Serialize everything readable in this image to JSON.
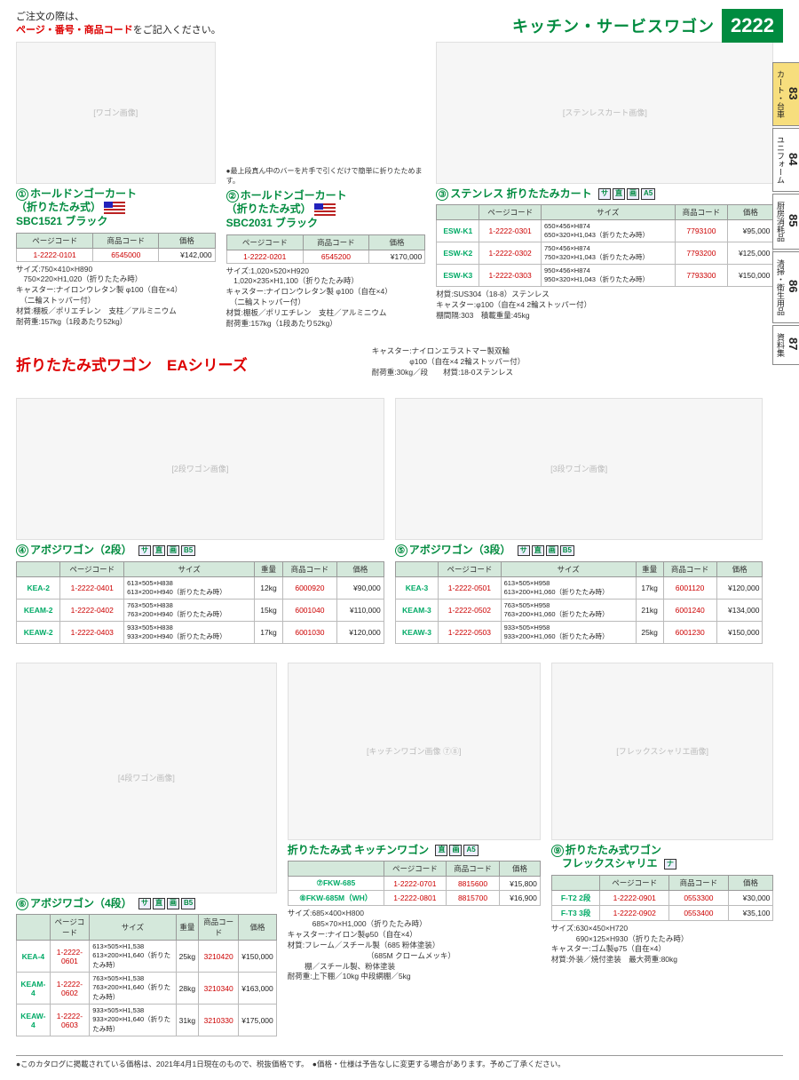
{
  "header": {
    "notice_pre": "ご注文の際は、",
    "notice_red": "ページ・番号・商品コード",
    "notice_post": "をご記入ください。",
    "title": "キッチン・サービスワゴン",
    "page_number": "2222"
  },
  "side_tabs": [
    {
      "num": "83",
      "label": "カート・台車",
      "active": true
    },
    {
      "num": "84",
      "label": "ユニフォーム",
      "active": false
    },
    {
      "num": "85",
      "label": "厨房消耗品",
      "active": false
    },
    {
      "num": "86",
      "label": "清掃・衛生用品",
      "active": false
    },
    {
      "num": "87",
      "label": "資料集",
      "active": false
    }
  ],
  "prod1": {
    "num": "①",
    "title1": "ホールドンゴーカート",
    "title2": "（折りたたみ式）",
    "title3": "SBC1521 ブラック",
    "flag_label": "アメリカ",
    "img_note": "●最上段真ん中のバーを片手で引くだけで簡単に折りたためます。",
    "table_headers": [
      "ページコード",
      "商品コード",
      "価格"
    ],
    "row": {
      "pagecode": "1-2222-0101",
      "itemcode": "6545000",
      "price": "¥142,000"
    },
    "spec": "サイズ:750×410×H890\n　750×220×H1,020（折りたたみ時）\nキャスター:ナイロンウレタン製 φ100（自在×4）\n　（二輪ストッパー付）\n材質:棚板／ポリエチレン　支柱／アルミニウム\n耐荷重:157kg（1段あたり52kg）"
  },
  "prod2": {
    "num": "②",
    "title1": "ホールドンゴーカート",
    "title2": "（折りたたみ式）",
    "title3": "SBC2031 ブラック",
    "flag_label": "アメリカ",
    "table_headers": [
      "ページコード",
      "商品コード",
      "価格"
    ],
    "row": {
      "pagecode": "1-2222-0201",
      "itemcode": "6545200",
      "price": "¥170,000"
    },
    "spec": "サイズ:1,020×520×H920\n　1,020×235×H1,100（折りたたみ時）\nキャスター:ナイロンウレタン製 φ100（自在×4）\n　（二輪ストッパー付）\n材質:棚板／ポリエチレン　支柱／アルミニウム\n耐荷重:157kg（1段あたり52kg）"
  },
  "prod3": {
    "num": "③",
    "title": "ステンレス 折りたたみカート",
    "badges": [
      "サ",
      "直",
      "画",
      "A5"
    ],
    "table_headers": [
      "",
      "ページコード",
      "サイズ",
      "商品コード",
      "価格"
    ],
    "rows": [
      {
        "model": "ESW-K1",
        "pagecode": "1-2222-0301",
        "size": "650×456×H874\n650×320×H1,043（折りたたみ時）",
        "itemcode": "7793100",
        "price": "¥95,000"
      },
      {
        "model": "ESW-K2",
        "pagecode": "1-2222-0302",
        "size": "750×456×H874\n750×320×H1,043（折りたたみ時）",
        "itemcode": "7793200",
        "price": "¥125,000"
      },
      {
        "model": "ESW-K3",
        "pagecode": "1-2222-0303",
        "size": "950×456×H874\n950×320×H1,043（折りたたみ時）",
        "itemcode": "7793300",
        "price": "¥150,000"
      }
    ],
    "spec": "材質:SUS304（18-8）ステンレス\nキャスター:φ100（自在×4 2輪ストッパー付）\n棚間隔:303　積載重量:45kg"
  },
  "series": {
    "title": "折りたたみ式ワゴン　EAシリーズ",
    "notes": "キャスター:ナイロンエラストマー製双輪\n　　　　　φ100（自在×4 2輪ストッパー付）\n耐荷重:30kg／段　　材質:18-0ステンレス"
  },
  "prod4": {
    "num": "④",
    "title": "アボジワゴン（2段）",
    "badges": [
      "サ",
      "直",
      "画",
      "B5"
    ],
    "table_headers": [
      "",
      "ページコード",
      "サイズ",
      "重量",
      "商品コード",
      "価格"
    ],
    "rows": [
      {
        "model": "KEA-2",
        "pagecode": "1-2222-0401",
        "size": "613×505×H838\n613×200×H940（折りたたみ時）",
        "weight": "12kg",
        "itemcode": "6000920",
        "price": "¥90,000"
      },
      {
        "model": "KEAM-2",
        "pagecode": "1-2222-0402",
        "size": "763×505×H838\n763×200×H940（折りたたみ時）",
        "weight": "15kg",
        "itemcode": "6001040",
        "price": "¥110,000"
      },
      {
        "model": "KEAW-2",
        "pagecode": "1-2222-0403",
        "size": "933×505×H838\n933×200×H940（折りたたみ時）",
        "weight": "17kg",
        "itemcode": "6001030",
        "price": "¥120,000"
      }
    ]
  },
  "prod5": {
    "num": "⑤",
    "title": "アボジワゴン（3段）",
    "badges": [
      "サ",
      "直",
      "画",
      "B5"
    ],
    "table_headers": [
      "",
      "ページコード",
      "サイズ",
      "重量",
      "商品コード",
      "価格"
    ],
    "rows": [
      {
        "model": "KEA-3",
        "pagecode": "1-2222-0501",
        "size": "613×505×H958\n613×200×H1,060（折りたたみ時）",
        "weight": "17kg",
        "itemcode": "6001120",
        "price": "¥120,000"
      },
      {
        "model": "KEAM-3",
        "pagecode": "1-2222-0502",
        "size": "763×505×H958\n763×200×H1,060（折りたたみ時）",
        "weight": "21kg",
        "itemcode": "6001240",
        "price": "¥134,000"
      },
      {
        "model": "KEAW-3",
        "pagecode": "1-2222-0503",
        "size": "933×505×H958\n933×200×H1,060（折りたたみ時）",
        "weight": "25kg",
        "itemcode": "6001230",
        "price": "¥150,000"
      }
    ]
  },
  "prod6": {
    "num": "⑥",
    "title": "アボジワゴン（4段）",
    "badges": [
      "サ",
      "直",
      "画",
      "B5"
    ],
    "table_headers": [
      "",
      "ページコード",
      "サイズ",
      "重量",
      "商品コード",
      "価格"
    ],
    "rows": [
      {
        "model": "KEA-4",
        "pagecode": "1-2222-0601",
        "size": "613×505×H1,538\n613×200×H1,640（折りたたみ時）",
        "weight": "25kg",
        "itemcode": "3210420",
        "price": "¥150,000"
      },
      {
        "model": "KEAM-4",
        "pagecode": "1-2222-0602",
        "size": "763×505×H1,538\n763×200×H1,640（折りたたみ時）",
        "weight": "28kg",
        "itemcode": "3210340",
        "price": "¥163,000"
      },
      {
        "model": "KEAW-4",
        "pagecode": "1-2222-0603",
        "size": "933×505×H1,538\n933×200×H1,640（折りたたみ時）",
        "weight": "31kg",
        "itemcode": "3210330",
        "price": "¥175,000"
      }
    ]
  },
  "prod78": {
    "title": "折りたたみ式 キッチンワゴン",
    "badges": [
      "直",
      "画",
      "A5"
    ],
    "table_headers": [
      "",
      "ページコード",
      "商品コード",
      "価格"
    ],
    "rows": [
      {
        "num": "⑦",
        "model": "FKW-685",
        "pagecode": "1-2222-0701",
        "itemcode": "8815600",
        "price": "¥15,800"
      },
      {
        "num": "⑧",
        "model": "FKW-685M（WH）",
        "pagecode": "1-2222-0801",
        "itemcode": "8815700",
        "price": "¥16,900"
      }
    ],
    "spec": "サイズ:685×400×H800\n　　　 685×70×H1,000（折りたたみ時）\nキャスター:ナイロン製φ50（自在×4）\n材質:フレーム／スチール製（685 粉体塗装）\n　　　　　　　　　　　（685M クロームメッキ）\n　　 棚／スチール製、粉体塗装\n耐荷重:上下棚／10kg 中段網棚／5kg"
  },
  "prod9": {
    "num": "⑨",
    "title1": "折りたたみ式ワゴン",
    "title2": "フレックスシャリエ",
    "badges": [
      "ナ"
    ],
    "table_headers": [
      "",
      "ページコード",
      "商品コード",
      "価格"
    ],
    "rows": [
      {
        "model": "F-T2 2段",
        "pagecode": "1-2222-0901",
        "itemcode": "0553300",
        "price": "¥30,000"
      },
      {
        "model": "F-T3 3段",
        "pagecode": "1-2222-0902",
        "itemcode": "0553400",
        "price": "¥35,100"
      }
    ],
    "spec": "サイズ:630×450×H720\n　　　 690×125×H930（折りたたみ時）\nキャスター:ゴム製φ75（自在×4）\n材質:外装／焼付塗装　最大荷重:80kg"
  },
  "footer": "●このカタログに掲載されている価格は、2021年4月1日現在のもので、税抜価格です。　●価格・仕様は予告なしに変更する場合があります。予めご了承ください。"
}
